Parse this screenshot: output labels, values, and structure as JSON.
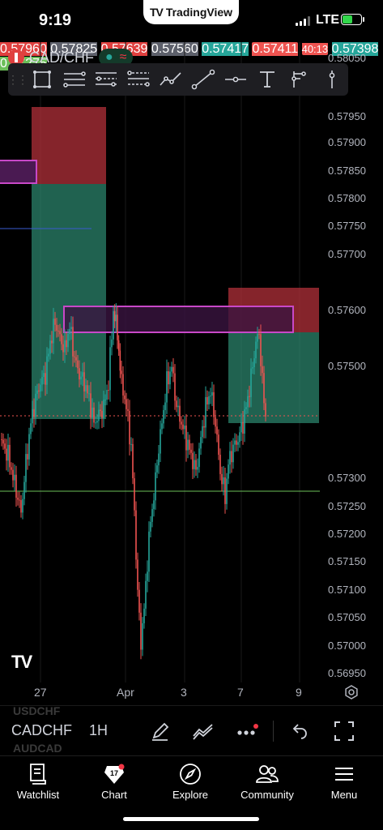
{
  "status_bar": {
    "time": "9:19",
    "app": "TradingView",
    "network": "LTE"
  },
  "symbol_header": {
    "symbol": "CAD/CHF"
  },
  "toolbar": {
    "tools": [
      "rectangle-icon",
      "parallel-channel-icon",
      "fib-retracement-icon",
      "fib-extension-icon",
      "path-icon",
      "trend-line-icon",
      "horizontal-line-icon",
      "text-icon",
      "long-position-icon",
      "vertical-line-icon"
    ]
  },
  "price_axis": {
    "ticks": [
      "0.58050",
      "0.57950",
      "0.57900",
      "0.57850",
      "0.57800",
      "0.57750",
      "0.57700",
      "0.57600",
      "0.57500",
      "0.57300",
      "0.57250",
      "0.57200",
      "0.57150",
      "0.57100",
      "0.57050",
      "0.57000",
      "0.56950"
    ],
    "tags": {
      "stop_top": "0.57960",
      "mid_left": "0.57825",
      "stop_right": "0.57639",
      "entry_right": "0.57560",
      "target_a": "0.57417",
      "last_price": "0.57411",
      "countdown": "40:13",
      "target_b": "0.57398",
      "support": "0.57275"
    }
  },
  "time_axis": {
    "labels": [
      "27",
      "Apr",
      "3",
      "7",
      "9"
    ]
  },
  "colors": {
    "background": "#000000",
    "bull": "#26a69a",
    "bear": "#ef5350",
    "stop_zone": "#b2303a",
    "target_zone": "#2e8b72",
    "magenta": "#c848c8",
    "support_line": "#6bbf59",
    "tag_grey": "#5d606b"
  },
  "lower_bar": {
    "ghost_top": "USDCHF",
    "symbol": "CADCHF",
    "ghost_bottom": "AUDCAD",
    "timeframe": "1H"
  },
  "bottom_nav": {
    "items": [
      {
        "label": "Watchlist",
        "icon": "watchlist-icon"
      },
      {
        "label": "Chart",
        "icon": "chart-icon"
      },
      {
        "label": "Explore",
        "icon": "compass-icon"
      },
      {
        "label": "Community",
        "icon": "community-icon"
      },
      {
        "label": "Menu",
        "icon": "menu-icon"
      }
    ]
  }
}
